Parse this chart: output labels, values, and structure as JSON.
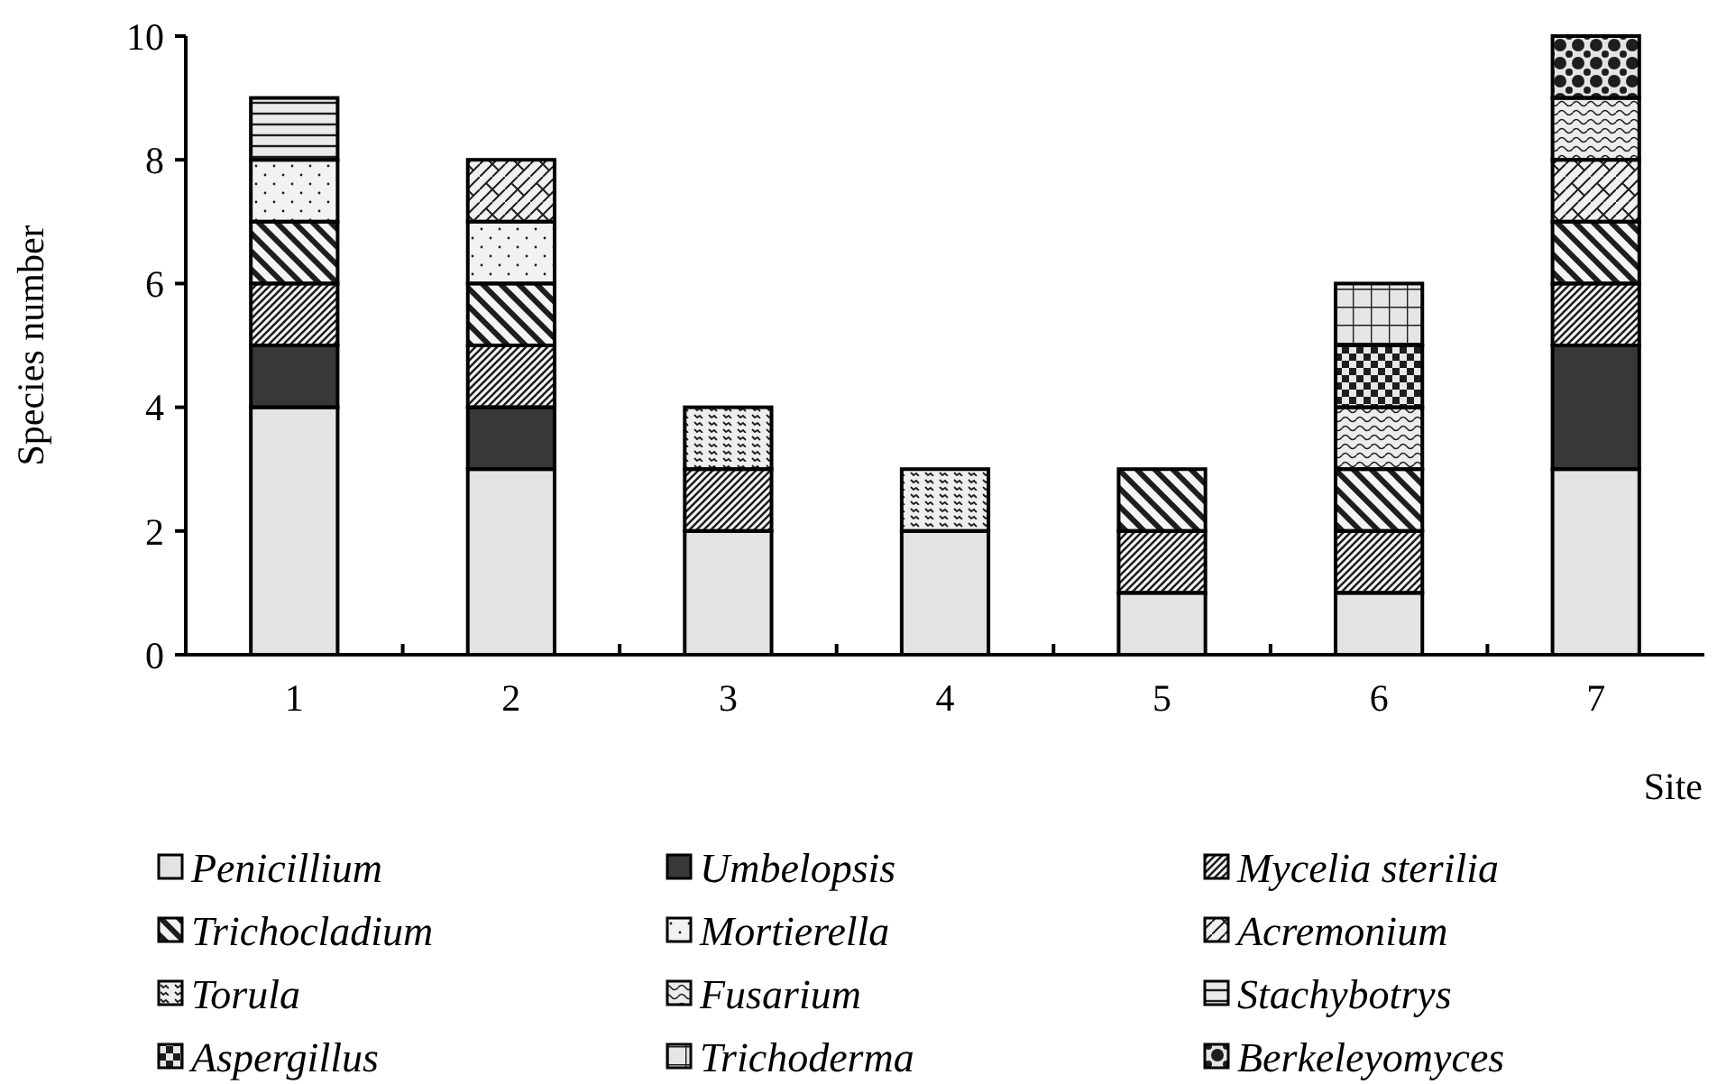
{
  "chart_data": {
    "type": "bar",
    "stacked": true,
    "xlabel": "Site",
    "ylabel": "Species number",
    "categories": [
      "1",
      "2",
      "3",
      "4",
      "5",
      "6",
      "7"
    ],
    "ylim": [
      0,
      10
    ],
    "yticks": [
      0,
      2,
      4,
      6,
      8,
      10
    ],
    "legend": "bottom",
    "series": [
      {
        "name": "Penicillium",
        "color": "#e3e3e3",
        "values": [
          4,
          3,
          2,
          2,
          1,
          1,
          3
        ]
      },
      {
        "name": "Umbelopsis",
        "color": "#383838",
        "values": [
          1,
          1,
          0,
          0,
          0,
          0,
          2
        ]
      },
      {
        "name": "Mycelia sterilia",
        "color": "#f6f6f6",
        "values": [
          1,
          1,
          1,
          0,
          1,
          1,
          1
        ]
      },
      {
        "name": "Trichocladium",
        "color": "#f4f4f4",
        "values": [
          1,
          1,
          0,
          0,
          1,
          1,
          1
        ]
      },
      {
        "name": "Mortierella",
        "color": "#f2f2f2",
        "values": [
          1,
          1,
          0,
          0,
          0,
          0,
          0
        ]
      },
      {
        "name": "Acremonium",
        "color": "#f0f0f0",
        "values": [
          0,
          1,
          0,
          0,
          0,
          0,
          1
        ]
      },
      {
        "name": "Torula",
        "color": "#eeeeee",
        "values": [
          0,
          0,
          1,
          1,
          0,
          0,
          0
        ]
      },
      {
        "name": "Fusarium",
        "color": "#ececec",
        "values": [
          0,
          0,
          0,
          0,
          0,
          1,
          1
        ]
      },
      {
        "name": "Stachybotrys",
        "color": "#eaeaea",
        "values": [
          1,
          0,
          0,
          0,
          0,
          0,
          0
        ]
      },
      {
        "name": "Aspergillus",
        "color": "#e8e8e8",
        "values": [
          0,
          0,
          0,
          0,
          0,
          1,
          0
        ]
      },
      {
        "name": "Trichoderma",
        "color": "#e6e6e6",
        "values": [
          0,
          0,
          0,
          0,
          0,
          1,
          0
        ]
      },
      {
        "name": "Berkeleyomyces",
        "color": "#e4e4e4",
        "values": [
          0,
          0,
          0,
          0,
          0,
          0,
          1
        ]
      }
    ]
  }
}
